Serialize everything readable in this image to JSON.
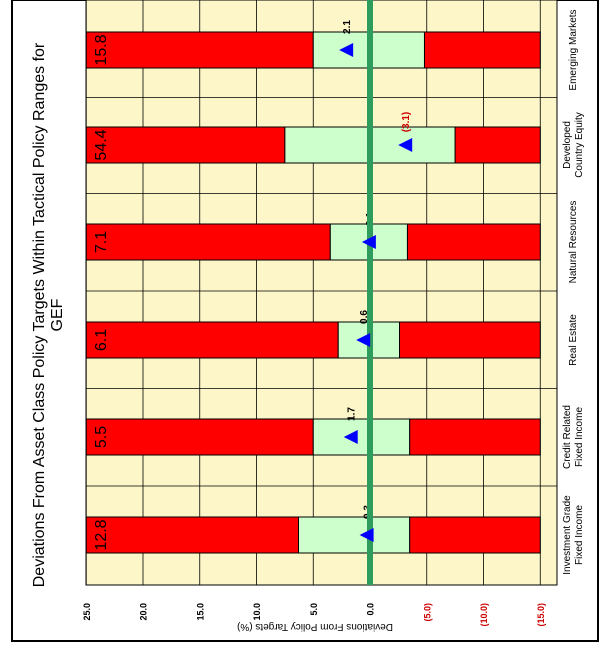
{
  "chart_data": {
    "type": "bar",
    "orientation": "rotated-90",
    "title": "Deviations From Asset Class Policy Targets Within Tactical Policy Ranges for GEF",
    "ylabel": "Deviations From Policy Targets (%)",
    "ylim": [
      -15,
      25
    ],
    "yticks": [
      {
        "value": 25,
        "label": "25.0"
      },
      {
        "value": 20,
        "label": "20.0"
      },
      {
        "value": 15,
        "label": "15.0"
      },
      {
        "value": 10,
        "label": "10.0"
      },
      {
        "value": 5,
        "label": "5.0"
      },
      {
        "value": 0,
        "label": "0.0"
      },
      {
        "value": -5,
        "label": "(5.0)"
      },
      {
        "value": -10,
        "label": "(10.0)"
      },
      {
        "value": -15,
        "label": "(15.0)"
      }
    ],
    "grid": true,
    "categories": [
      {
        "name": "Investment Grade Fixed Income",
        "lines": [
          "Investment Grade",
          "Fixed Income"
        ],
        "policy_target": "12.8",
        "range_low": -3.5,
        "range_high": 6.3,
        "deviation": 0.3,
        "deviation_label": "0.3"
      },
      {
        "name": "Credit Related Fixed Income",
        "lines": [
          "Credit Related",
          "Fixed Income"
        ],
        "policy_target": "5.5",
        "range_low": -3.5,
        "range_high": 5.0,
        "deviation": 1.7,
        "deviation_label": "1.7"
      },
      {
        "name": "Real Estate",
        "lines": [
          "Real Estate"
        ],
        "policy_target": "6.1",
        "range_low": -2.6,
        "range_high": 2.8,
        "deviation": 0.6,
        "deviation_label": "0.6"
      },
      {
        "name": "Natural Resources",
        "lines": [
          "Natural Resources"
        ],
        "policy_target": "7.1",
        "range_low": -3.3,
        "range_high": 3.5,
        "deviation": 0.1,
        "deviation_label": "0.1"
      },
      {
        "name": "Developed Country Equity",
        "lines": [
          "Developed",
          "Country Equity"
        ],
        "policy_target": "54.4",
        "range_low": -7.5,
        "range_high": 7.5,
        "deviation": -3.1,
        "deviation_label": "(3.1)"
      },
      {
        "name": "Emerging Markets",
        "lines": [
          "Emerging Markets"
        ],
        "policy_target": "15.8",
        "range_low": -4.8,
        "range_high": 5.0,
        "deviation": 2.1,
        "deviation_label": "2.1"
      }
    ],
    "colors": {
      "plot_background": "#fdf6c8",
      "outside_range": "#ff0000",
      "within_range": "#ccffcc",
      "zero_line": "#2e9c5c",
      "marker": "#0000ff",
      "negative_label": "#cc0000",
      "text": "#000000"
    }
  }
}
